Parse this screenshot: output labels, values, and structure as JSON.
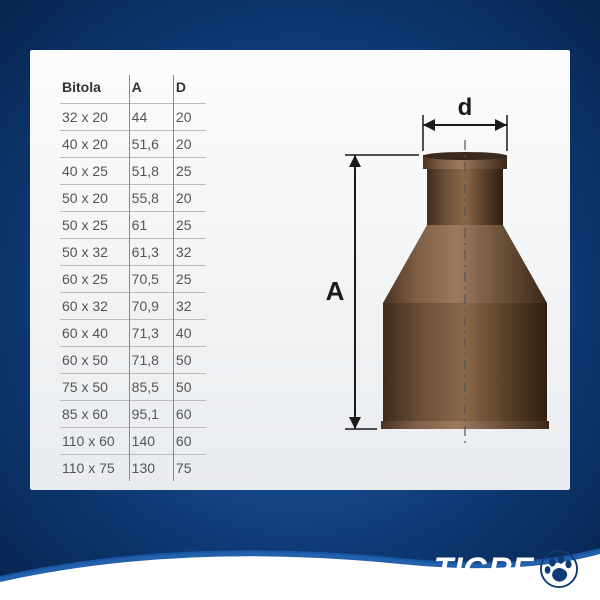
{
  "table": {
    "columns": [
      "Bitola",
      "A",
      "D"
    ],
    "rows": [
      [
        "32 x 20",
        "44",
        "20"
      ],
      [
        "40 x 20",
        "51,6",
        "20"
      ],
      [
        "40 x 25",
        "51,8",
        "25"
      ],
      [
        "50 x 20",
        "55,8",
        "20"
      ],
      [
        "50 x 25",
        "61",
        "25"
      ],
      [
        "50 x 32",
        "61,3",
        "32"
      ],
      [
        "60 x 25",
        "70,5",
        "25"
      ],
      [
        "60 x 32",
        "70,9",
        "32"
      ],
      [
        "60 x 40",
        "71,3",
        "40"
      ],
      [
        "60 x 50",
        "71,8",
        "50"
      ],
      [
        "75 x 50",
        "85,5",
        "50"
      ],
      [
        "85 x 60",
        "95,1",
        "60"
      ],
      [
        "110 x 60",
        "140",
        "60"
      ],
      [
        "110 x 75",
        "130",
        "75"
      ]
    ],
    "header_fontsize": 14,
    "cell_fontsize": 14,
    "border_color": "#999999",
    "text_color": "#555555"
  },
  "diagram": {
    "label_d": "d",
    "label_A": "A",
    "fitting_color_light": "#8a6b52",
    "fitting_color_mid": "#6b4e38",
    "fitting_color_dark": "#4a3424",
    "dim_line_color": "#1a1a1a",
    "centerline_color": "#555555",
    "label_fontsize": 24,
    "label_fontweight": "bold"
  },
  "brand": {
    "text": "TIGRE",
    "text_color": "#ffffff",
    "swoosh_color": "#ffffff",
    "accent_color": "#1858a8"
  },
  "background": {
    "gradient_inner": "#2a6fb5",
    "gradient_outer": "#07244d"
  }
}
